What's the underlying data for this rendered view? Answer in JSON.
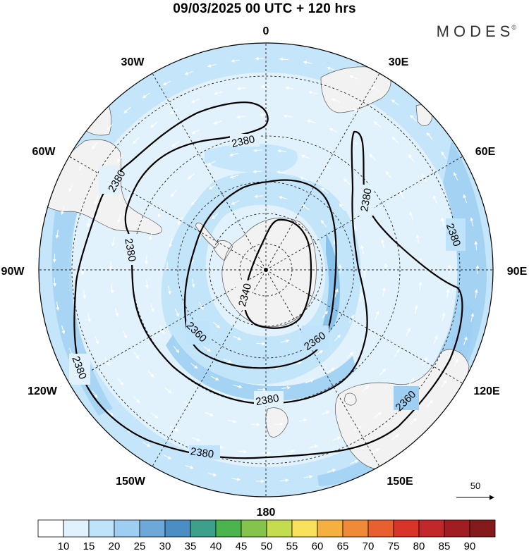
{
  "header": {
    "title": "09/03/2025  00 UTC  + 120 hrs",
    "brand": "MODES",
    "brand_mark": "©"
  },
  "map": {
    "projection": "south-polar-stereographic",
    "longitude_labels": [
      "0",
      "30E",
      "60E",
      "90E",
      "120E",
      "150E",
      "180",
      "150W",
      "120W",
      "90W",
      "60W",
      "30W"
    ],
    "contour_field": "geopotential height (gpm)",
    "contour_labels": [
      "2380",
      "2380",
      "2380",
      "2380",
      "2380",
      "2380",
      "2380",
      "2380",
      "2360",
      "2360",
      "2360",
      "2340"
    ],
    "colors": {
      "land": "#f2f2f2",
      "shade_light": "#e2f2fd",
      "shade_mid": "#bfe3fa",
      "shade_strong": "#9ecff2",
      "shade_peak": "#7fbce8",
      "wind_arrows": "#ffffff"
    },
    "wind_reference": {
      "value": "50"
    }
  },
  "colorbar": {
    "labels": [
      "10",
      "15",
      "20",
      "25",
      "30",
      "35",
      "40",
      "45",
      "50",
      "55",
      "60",
      "65",
      "70",
      "75",
      "80",
      "85",
      "90"
    ],
    "colors": [
      "#ffffff",
      "#e2f2fd",
      "#bfe3fa",
      "#9ecff2",
      "#6ea8d8",
      "#4a8ec4",
      "#3da08c",
      "#4cb44e",
      "#84c44c",
      "#c4dc50",
      "#f8e15c",
      "#f5b042",
      "#ee8a38",
      "#e8602f",
      "#d8342a",
      "#c0282a",
      "#a01e22",
      "#841a1c"
    ]
  }
}
